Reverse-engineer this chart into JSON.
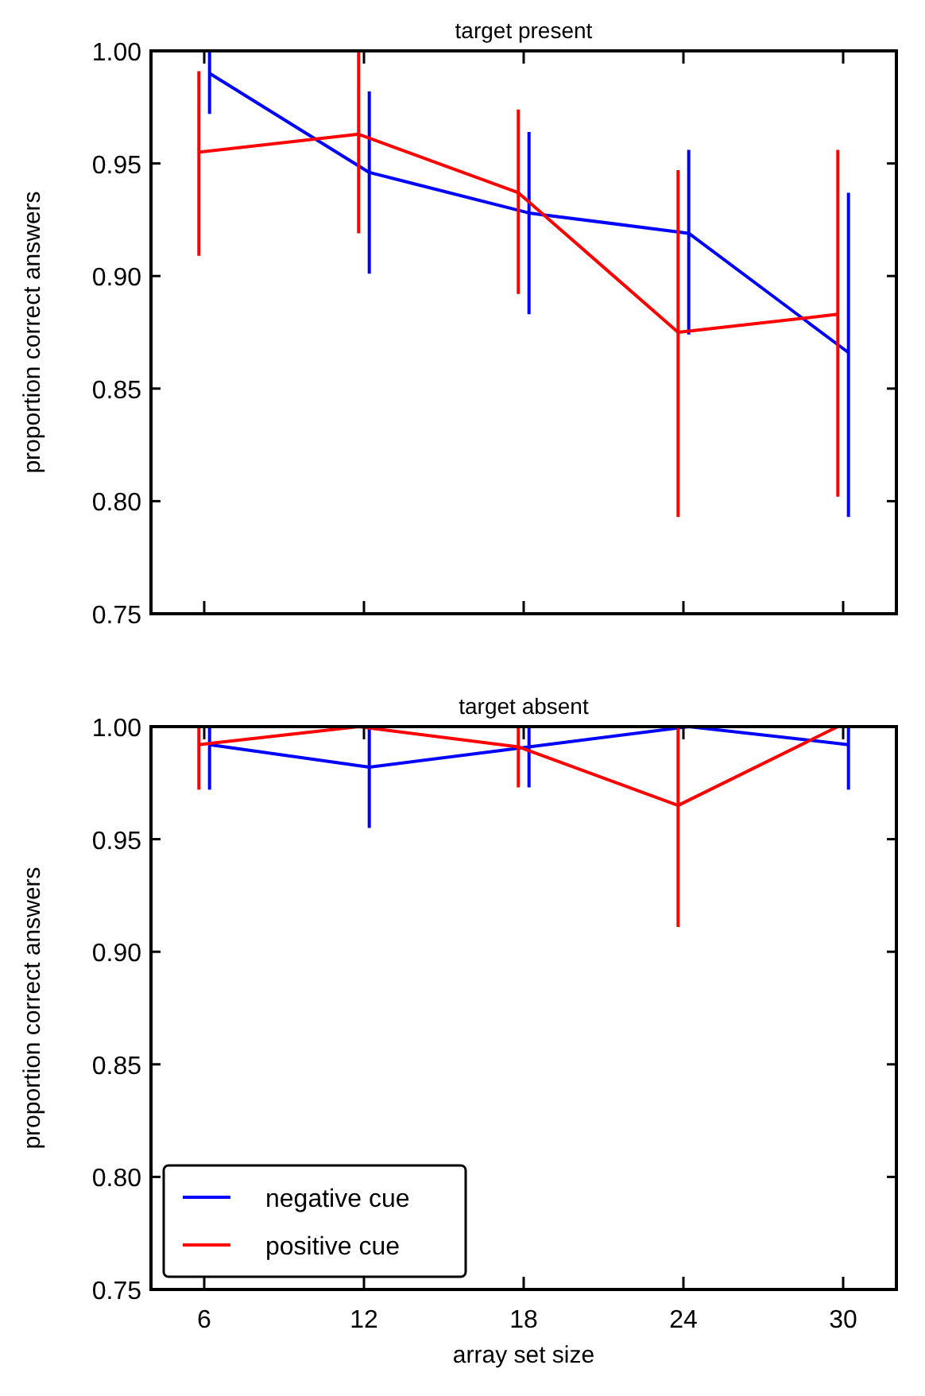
{
  "chart_data": [
    {
      "type": "line",
      "title": "target present",
      "ylabel": "proportion correct answers",
      "xlim": [
        4,
        32
      ],
      "xticks": [
        6,
        12,
        18,
        24,
        30
      ],
      "ylim": [
        0.75,
        1.0
      ],
      "yticks": [
        {
          "value": 0.75,
          "label": "0.75"
        },
        {
          "value": 0.8,
          "label": "0.80"
        },
        {
          "value": 0.85,
          "label": "0.85"
        },
        {
          "value": 0.9,
          "label": "0.90"
        },
        {
          "value": 0.95,
          "label": "0.95"
        },
        {
          "value": 1.0,
          "label": "1.00"
        }
      ],
      "tick_labels": "y",
      "grid": false,
      "marker": "none",
      "line_style": "solid",
      "series": [
        {
          "color": "#0000ff",
          "x": [
            6.2,
            12.2,
            18.2,
            24.2,
            30.2
          ],
          "values": [
            0.99,
            0.946,
            0.928,
            0.919,
            0.866
          ],
          "errors": [
            [
              0.972,
              1.0
            ],
            [
              0.901,
              0.982
            ],
            [
              0.883,
              0.964
            ],
            [
              0.874,
              0.956
            ],
            [
              0.793,
              0.937
            ]
          ]
        },
        {
          "color": "#ff0000",
          "x": [
            5.8,
            11.8,
            17.8,
            23.8,
            29.8
          ],
          "values": [
            0.955,
            0.963,
            0.937,
            0.875,
            0.883
          ],
          "errors": [
            [
              0.909,
              0.991
            ],
            [
              0.919,
              1.0
            ],
            [
              0.892,
              0.974
            ],
            [
              0.793,
              0.947
            ],
            [
              0.802,
              0.956
            ]
          ]
        }
      ]
    },
    {
      "type": "line",
      "title": "target absent",
      "xlabel": "array set size",
      "ylabel": "proportion correct answers",
      "xlim": [
        4,
        32
      ],
      "xticks": [
        6,
        12,
        18,
        24,
        30
      ],
      "ylim": [
        0.75,
        1.0
      ],
      "yticks": [
        {
          "value": 0.75,
          "label": "0.75"
        },
        {
          "value": 0.8,
          "label": "0.80"
        },
        {
          "value": 0.85,
          "label": "0.85"
        },
        {
          "value": 0.9,
          "label": "0.90"
        },
        {
          "value": 0.95,
          "label": "0.95"
        },
        {
          "value": 1.0,
          "label": "1.00"
        }
      ],
      "grid": false,
      "marker": "none",
      "line_style": "solid",
      "legend": "bottom left",
      "series": [
        {
          "name": "negative cue",
          "color": "#0000ff",
          "x": [
            6.2,
            12.2,
            18.2,
            24.2,
            30.2
          ],
          "values": [
            0.992,
            0.982,
            0.991,
            1.0,
            0.992
          ],
          "errors": [
            [
              0.972,
              1.0
            ],
            [
              0.955,
              1.0
            ],
            [
              0.973,
              1.0
            ],
            null,
            [
              0.972,
              1.0
            ]
          ]
        },
        {
          "name": "positive cue",
          "color": "#ff0000",
          "x": [
            5.8,
            11.8,
            17.8,
            23.8,
            29.8
          ],
          "values": [
            0.992,
            1.0,
            0.991,
            0.965,
            1.0
          ],
          "errors": [
            [
              0.972,
              1.0
            ],
            null,
            [
              0.973,
              1.0
            ],
            [
              0.911,
              1.0
            ],
            null
          ]
        }
      ]
    }
  ]
}
